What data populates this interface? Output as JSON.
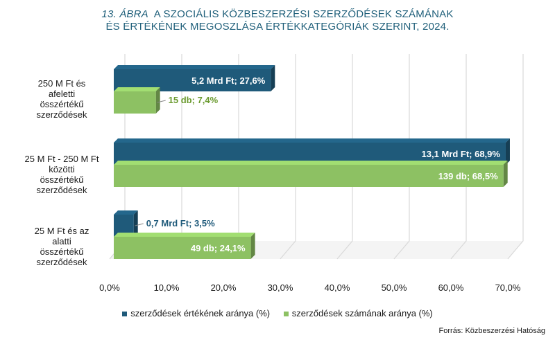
{
  "title": {
    "label": "13. ÁBRA",
    "line1": "A SZOCIÁLIS KÖZBESZERZÉSI SZERZŐDÉSEK SZÁMÁNAK",
    "line2": "ÉS ÉRTÉKÉNEK MEGOSZLÁSA ÉRTÉKKATEGÓRIÁK SZERINT, 2024."
  },
  "source": "Forrás: Közbeszerzési Hatóság",
  "colors": {
    "value_series": "#1f5a7a",
    "count_series": "#8dc163",
    "count_label": "#6a9a2e",
    "title": "#1f5f7a"
  },
  "chart_data": {
    "type": "bar",
    "orientation": "horizontal",
    "categories": [
      "250 M Ft és afeletti összértékű szerződések",
      "25 M Ft - 250 M Ft közötti összértékű szerződések",
      "25 M Ft és az alatti összértékű szerződések"
    ],
    "category_lines": [
      [
        "250 M Ft  és",
        "afeletti",
        "összértékű",
        "szerződések"
      ],
      [
        "25 M Ft - 250 M Ft",
        "közötti",
        "összértékű",
        "szerződések"
      ],
      [
        "25 M Ft  és az",
        "alatti",
        "összértékű",
        "szerződések"
      ]
    ],
    "series": [
      {
        "name": "szerződések értékének aránya (%)",
        "values": [
          27.6,
          68.9,
          3.5
        ],
        "labels": [
          "5,2 Mrd Ft; 27,6%",
          "13,1 Mrd Ft; 68,9%",
          "0,7 Mrd Ft; 3,5%"
        ]
      },
      {
        "name": "szerződések számának aránya (%)",
        "values": [
          7.4,
          68.5,
          24.1
        ],
        "labels": [
          "15 db; 7,4%",
          "139 db; 68,5%",
          "49 db; 24,1%"
        ]
      }
    ],
    "xlim": [
      0,
      70
    ],
    "xticks": [
      0,
      10,
      20,
      30,
      40,
      50,
      60,
      70
    ],
    "xtick_labels": [
      "0,0%",
      "10,0%",
      "20,0%",
      "30,0%",
      "40,0%",
      "50,0%",
      "60,0%",
      "70,0%"
    ],
    "grid": true,
    "legend_position": "bottom"
  }
}
